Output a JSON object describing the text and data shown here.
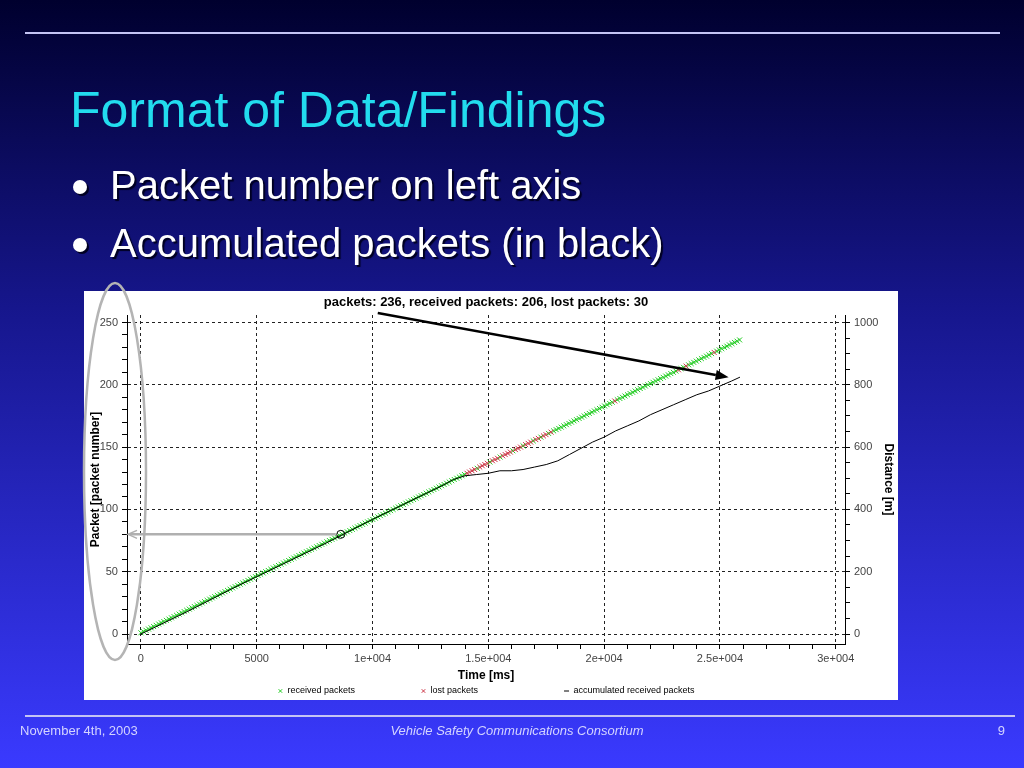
{
  "chart_data": {
    "type": "scatter",
    "title": "Format of Data/Findings",
    "xlabel": "Time [ms]",
    "ylabel": "Packet [packet number]",
    "y2label": "Distance [m]",
    "xlim": [
      -600,
      30400
    ],
    "ylim": [
      -8,
      256
    ],
    "y2lim": [
      -32,
      1024
    ],
    "xticks": [
      0,
      {
        "value": 1000,
        "label": null
      },
      {
        "value": 2000,
        "label": null
      },
      {
        "value": 3000,
        "label": null
      },
      {
        "value": 4000,
        "label": null
      },
      5000,
      {
        "value": 6000,
        "label": null
      },
      {
        "value": 7000,
        "label": null
      },
      {
        "value": 8000,
        "label": null
      },
      {
        "value": 9000,
        "label": null
      },
      {
        "value": 10000,
        "label": "1e+004"
      },
      {
        "value": 11000,
        "label": null
      },
      {
        "value": 12000,
        "label": null
      },
      {
        "value": 13000,
        "label": null
      },
      {
        "value": 14000,
        "label": null
      },
      {
        "value": 15000,
        "label": "1.5e+004"
      },
      {
        "value": 16000,
        "label": null
      },
      {
        "value": 17000,
        "label": null
      },
      {
        "value": 18000,
        "label": null
      },
      {
        "value": 19000,
        "label": null
      },
      {
        "value": 20000,
        "label": "2e+004"
      },
      {
        "value": 21000,
        "label": null
      },
      {
        "value": 22000,
        "label": null
      },
      {
        "value": 23000,
        "label": null
      },
      {
        "value": 24000,
        "label": null
      },
      {
        "value": 25000,
        "label": "2.5e+004"
      },
      {
        "value": 26000,
        "label": null
      },
      {
        "value": 27000,
        "label": null
      },
      {
        "value": 28000,
        "label": null
      },
      {
        "value": 29000,
        "label": null
      },
      {
        "value": 30000,
        "label": "3e+004"
      }
    ],
    "yticks": [
      0,
      {
        "value": 10,
        "label": null
      },
      {
        "value": 20,
        "label": null
      },
      {
        "value": 30,
        "label": null
      },
      {
        "value": 40,
        "label": null
      },
      50,
      {
        "value": 60,
        "label": null
      },
      {
        "value": 70,
        "label": null
      },
      {
        "value": 80,
        "label": null
      },
      {
        "value": 90,
        "label": null
      },
      100,
      {
        "value": 110,
        "label": null
      },
      {
        "value": 120,
        "label": null
      },
      {
        "value": 130,
        "label": null
      },
      {
        "value": 140,
        "label": null
      },
      150,
      {
        "value": 160,
        "label": null
      },
      {
        "value": 170,
        "label": null
      },
      {
        "value": 180,
        "label": null
      },
      {
        "value": 190,
        "label": null
      },
      200,
      {
        "value": 210,
        "label": null
      },
      {
        "value": 220,
        "label": null
      },
      {
        "value": 230,
        "label": null
      },
      {
        "value": 240,
        "label": null
      },
      250
    ],
    "y2ticks": [
      0,
      {
        "value": 50,
        "label": null
      },
      {
        "value": 100,
        "label": null
      },
      {
        "value": 150,
        "label": null
      },
      200,
      {
        "value": 250,
        "label": null
      },
      {
        "value": 300,
        "label": null
      },
      {
        "value": 350,
        "label": null
      },
      400,
      {
        "value": 450,
        "label": null
      },
      {
        "value": 500,
        "label": null
      },
      {
        "value": 550,
        "label": null
      },
      600,
      {
        "value": 650,
        "label": null
      },
      {
        "value": 700,
        "label": null
      },
      {
        "value": 750,
        "label": null
      },
      800,
      {
        "value": 850,
        "label": null
      },
      {
        "value": 900,
        "label": null
      },
      {
        "value": 950,
        "label": null
      },
      1000
    ],
    "grid": true,
    "legend": "bottom",
    "series": [
      {
        "name": "received packets",
        "marker": "cross",
        "color": "#22cc22",
        "x": [
          0,
          110,
          220,
          330,
          440,
          550,
          660,
          770,
          880,
          990,
          1100,
          1210,
          1320,
          1430,
          1540,
          1650,
          1760,
          1870,
          1980,
          2090,
          2200,
          2310,
          2420,
          2530,
          2640,
          2750,
          2860,
          2970,
          3080,
          3190,
          3300,
          3410,
          3520,
          3630,
          3740,
          3850,
          3960,
          4070,
          4180,
          4290,
          4400,
          4510,
          4620,
          4730,
          4840,
          4950,
          5060,
          5170,
          5280,
          5390,
          5500,
          5610,
          5720,
          5830,
          5940,
          6050,
          6160,
          6270,
          6380,
          6490,
          6600,
          6710,
          6820,
          6930,
          7040,
          7150,
          7260,
          7370,
          7480,
          7590,
          7700,
          7810,
          7920,
          8030,
          8140,
          8250,
          8360,
          8470,
          8580,
          8690,
          8800,
          8910,
          9020,
          9130,
          9240,
          9350,
          9460,
          9570,
          9680,
          9790,
          9900,
          10010,
          10120,
          10230,
          10340,
          10450,
          10560,
          10670,
          10780,
          10890,
          11000,
          11110,
          11220,
          11330,
          11440,
          11550,
          11660,
          11770,
          11880,
          11990,
          12100,
          12210,
          12320,
          12430,
          12540,
          12650,
          12760,
          12870,
          12980,
          13090,
          13200,
          13310,
          13420,
          13530,
          13640,
          13750,
          13860,
          13970,
          14520,
          15070,
          15510,
          16060,
          16500,
          16940,
          17270,
          17600,
          17820,
          17930,
          18040,
          18150,
          18260,
          18370,
          18480,
          18590,
          18700,
          18810,
          18920,
          19030,
          19140,
          19250,
          19360,
          19470,
          19580,
          19690,
          19800,
          19910,
          20020,
          20130,
          20240,
          20350,
          20570,
          20680,
          20790,
          20900,
          21010,
          21120,
          21230,
          21340,
          21450,
          21560,
          21670,
          21780,
          21890,
          22000,
          22110,
          22220,
          22330,
          22440,
          22550,
          22660,
          22770,
          22880,
          22990,
          23100,
          23320,
          23430,
          23650,
          23760,
          23870,
          23980,
          24090,
          24200,
          24310,
          24420,
          24530,
          24640,
          24860,
          24970,
          25080,
          25190,
          25300,
          25410,
          25520,
          25630,
          25740,
          25850
        ],
        "values": [
          1,
          2,
          3,
          4,
          5,
          6,
          7,
          8,
          9,
          10,
          11,
          12,
          13,
          14,
          15,
          16,
          17,
          18,
          19,
          20,
          21,
          22,
          23,
          24,
          25,
          26,
          27,
          28,
          29,
          30,
          31,
          32,
          33,
          34,
          35,
          36,
          37,
          38,
          39,
          40,
          41,
          42,
          43,
          44,
          45,
          46,
          47,
          48,
          49,
          50,
          51,
          52,
          53,
          54,
          55,
          56,
          57,
          58,
          59,
          60,
          61,
          62,
          63,
          64,
          65,
          66,
          67,
          68,
          69,
          70,
          71,
          72,
          73,
          74,
          75,
          76,
          77,
          78,
          79,
          80,
          81,
          82,
          83,
          84,
          85,
          86,
          87,
          88,
          89,
          90,
          91,
          92,
          93,
          94,
          95,
          96,
          97,
          98,
          99,
          100,
          101,
          102,
          103,
          104,
          105,
          106,
          107,
          108,
          109,
          110,
          111,
          112,
          113,
          114,
          115,
          116,
          117,
          118,
          119,
          120,
          121,
          122,
          123,
          124,
          125,
          126,
          127,
          128,
          133,
          138,
          142,
          147,
          151,
          155,
          158,
          161,
          163,
          164,
          165,
          166,
          167,
          168,
          169,
          170,
          171,
          172,
          173,
          174,
          175,
          176,
          177,
          178,
          179,
          180,
          181,
          182,
          183,
          184,
          185,
          186,
          188,
          189,
          190,
          191,
          192,
          193,
          194,
          195,
          196,
          197,
          198,
          199,
          200,
          201,
          202,
          203,
          204,
          205,
          206,
          207,
          208,
          209,
          210,
          211,
          213,
          214,
          216,
          217,
          218,
          219,
          220,
          221,
          222,
          223,
          224,
          225,
          227,
          228,
          229,
          230,
          231,
          232,
          233,
          234,
          235,
          236
        ]
      },
      {
        "name": "lost packets",
        "marker": "cross",
        "color": "#cc3344",
        "x": [
          14080,
          14190,
          14300,
          14410,
          14630,
          14740,
          14850,
          14960,
          15180,
          15290,
          15400,
          15620,
          15730,
          15840,
          15950,
          16170,
          16280,
          16390,
          16610,
          16720,
          16830,
          17050,
          17160,
          17380,
          17490,
          17710,
          20460,
          23210,
          23540,
          24750
        ],
        "values": [
          129,
          130,
          131,
          132,
          134,
          135,
          136,
          137,
          139,
          140,
          141,
          143,
          144,
          145,
          146,
          148,
          149,
          150,
          152,
          153,
          154,
          156,
          157,
          159,
          160,
          162,
          187,
          212,
          215,
          226
        ]
      },
      {
        "name": "accumulated received packets",
        "type": "line",
        "marker": "none",
        "color": "#000000",
        "x": [
          0,
          2000,
          4000,
          6000,
          8000,
          10000,
          12000,
          13000,
          13500,
          14000,
          14500,
          15000,
          15500,
          16000,
          16500,
          17000,
          17500,
          18000,
          18500,
          19000,
          19500,
          20000,
          20500,
          21000,
          21500,
          22000,
          22500,
          23000,
          23500,
          24000,
          24500,
          25000,
          25500,
          25850
        ],
        "values": [
          0,
          18,
          37,
          55,
          73,
          92,
          110,
          119,
          124,
          127,
          128,
          129,
          131,
          131,
          132,
          134,
          136,
          139,
          144,
          149,
          154,
          158,
          163,
          167,
          171,
          176,
          180,
          184,
          188,
          192,
          195,
          199,
          203,
          206
        ]
      },
      {
        "marker": "circle",
        "color": "#000000",
        "x": [
          8630
        ],
        "values": [
          80
        ]
      }
    ],
    "annotations": [
      "Packet number on left axis",
      "Accumulated packets (in black)",
      "packets: 236, received packets: 206, lost packets: 30",
      "November 4th, 2003",
      "Vehicle Safety Communications Consortium",
      "9"
    ]
  }
}
